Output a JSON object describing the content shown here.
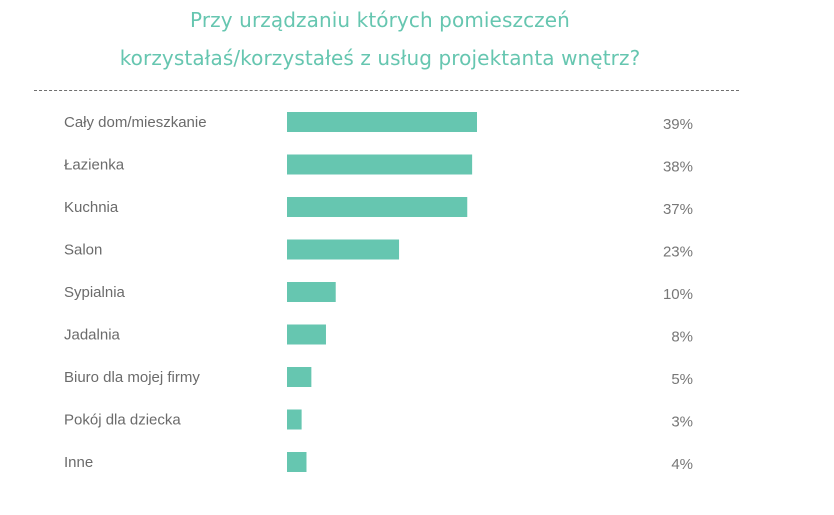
{
  "title": {
    "line1": "Przy urządzaniu których pomieszczeń",
    "line2": "korzystałaś/korzystałeś z usług projektanta wnętrz?"
  },
  "colors": {
    "accent": "#66c6b0",
    "text": "#6b6b6b",
    "divider": "#6f6f6f"
  },
  "chart_data": {
    "type": "bar",
    "orientation": "horizontal",
    "title": "Przy urządzaniu których pomieszczeń korzystałaś/korzystałeś z usług projektanta wnętrz?",
    "categories": [
      "Cały dom/mieszkanie",
      "Łazienka",
      "Kuchnia",
      "Salon",
      "Sypialnia",
      "Jadalnia",
      "Biuro dla mojej firmy",
      "Pokój dla dziecka",
      "Inne"
    ],
    "values": [
      39,
      38,
      37,
      23,
      10,
      8,
      5,
      3,
      4
    ],
    "value_labels": [
      "39%",
      "38%",
      "37%",
      "23%",
      "10%",
      "8%",
      "5%",
      "3%",
      "4%"
    ],
    "unit": "%",
    "xlim": [
      0,
      39
    ],
    "grid": false,
    "legend": "none",
    "bar_color": "#66c6b0"
  }
}
